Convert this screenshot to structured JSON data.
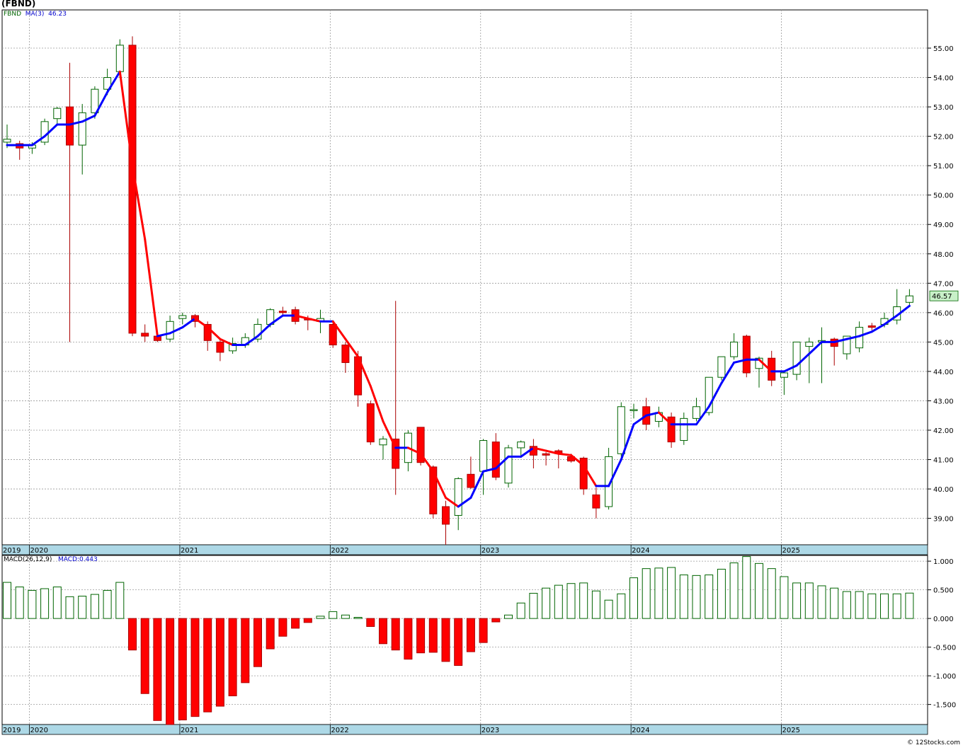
{
  "title": "(FBND)",
  "footer": "© 12Stocks.com",
  "colors": {
    "up": "#006400",
    "down": "#ff0000",
    "ma_up": "#0000ff",
    "ma_down": "#ff0000",
    "grid": "#9a9a9a",
    "axis_band": "#add8e6",
    "last_price_bg": "#c8f0c8"
  },
  "chart_data": [
    {
      "type": "candlestick",
      "ticker": "FBND",
      "legend": {
        "ticker": "FBND",
        "ma_label": "MA(3)",
        "ma_value": "46.23"
      },
      "last_price_label": "46.57",
      "ylim": [
        38.1,
        56.3
      ],
      "yticks": [
        "39.00",
        "40.00",
        "41.00",
        "42.00",
        "43.00",
        "44.00",
        "45.00",
        "46.00",
        "47.00",
        "48.00",
        "49.00",
        "50.00",
        "51.00",
        "52.00",
        "53.00",
        "54.00",
        "55.00"
      ],
      "x_labels": [
        "2019",
        "2020",
        "2021",
        "2022",
        "2023",
        "2024",
        "2025"
      ],
      "year_start_index": {
        "2019": -1,
        "2020": 2,
        "2021": 14,
        "2022": 26,
        "2023": 38,
        "2024": 50,
        "2025": 62
      },
      "ohlc": [
        [
          51.8,
          52.4,
          51.6,
          51.9
        ],
        [
          51.75,
          51.85,
          51.2,
          51.6
        ],
        [
          51.6,
          51.8,
          51.4,
          51.7
        ],
        [
          51.8,
          52.6,
          51.7,
          52.5
        ],
        [
          52.6,
          53.0,
          52.4,
          52.95
        ],
        [
          53.0,
          54.5,
          45.0,
          51.7
        ],
        [
          51.7,
          53.1,
          50.7,
          52.8
        ],
        [
          52.8,
          53.7,
          52.6,
          53.6
        ],
        [
          53.6,
          54.3,
          53.4,
          54.0
        ],
        [
          54.2,
          55.3,
          54.0,
          55.1
        ],
        [
          55.1,
          55.4,
          45.2,
          45.3
        ],
        [
          45.3,
          45.6,
          45.0,
          45.2
        ],
        [
          45.2,
          45.3,
          45.0,
          45.05
        ],
        [
          45.1,
          45.9,
          45.0,
          45.7
        ],
        [
          45.8,
          46.0,
          45.6,
          45.9
        ],
        [
          45.9,
          45.95,
          45.5,
          45.7
        ],
        [
          45.6,
          45.7,
          44.7,
          45.05
        ],
        [
          45.0,
          45.1,
          44.35,
          44.65
        ],
        [
          44.7,
          45.15,
          44.6,
          44.95
        ],
        [
          44.9,
          45.3,
          44.8,
          45.15
        ],
        [
          45.1,
          45.8,
          45.0,
          45.6
        ],
        [
          45.6,
          46.15,
          45.5,
          46.1
        ],
        [
          46.05,
          46.2,
          45.9,
          46.0
        ],
        [
          46.1,
          46.2,
          45.6,
          45.7
        ],
        [
          45.8,
          45.9,
          45.4,
          45.75
        ],
        [
          45.7,
          46.1,
          45.3,
          45.8
        ],
        [
          45.6,
          45.7,
          44.8,
          44.9
        ],
        [
          44.9,
          45.0,
          43.95,
          44.3
        ],
        [
          44.5,
          44.7,
          42.8,
          43.2
        ],
        [
          42.9,
          43.0,
          41.5,
          41.6
        ],
        [
          41.5,
          41.8,
          41.0,
          41.7
        ],
        [
          41.7,
          46.4,
          39.8,
          40.7
        ],
        [
          40.9,
          42.0,
          40.6,
          41.9
        ],
        [
          42.1,
          42.1,
          40.8,
          40.9
        ],
        [
          40.75,
          40.8,
          39.0,
          39.15
        ],
        [
          39.4,
          39.6,
          38.1,
          38.8
        ],
        [
          39.1,
          40.4,
          38.6,
          40.35
        ],
        [
          40.5,
          41.1,
          40.0,
          40.05
        ],
        [
          40.6,
          41.7,
          39.8,
          41.65
        ],
        [
          41.6,
          41.9,
          40.3,
          40.4
        ],
        [
          40.2,
          41.5,
          40.05,
          41.4
        ],
        [
          41.4,
          41.65,
          41.1,
          41.6
        ],
        [
          41.45,
          41.7,
          40.7,
          41.15
        ],
        [
          41.2,
          41.25,
          40.8,
          41.15
        ],
        [
          41.3,
          41.35,
          40.7,
          41.2
        ],
        [
          41.1,
          41.2,
          40.9,
          40.95
        ],
        [
          41.05,
          41.1,
          39.8,
          40.0
        ],
        [
          39.8,
          40.05,
          39.0,
          39.35
        ],
        [
          39.4,
          41.4,
          39.3,
          41.1
        ],
        [
          41.2,
          42.95,
          41.1,
          42.8
        ],
        [
          42.7,
          42.9,
          42.4,
          42.7
        ],
        [
          42.8,
          43.1,
          42.0,
          42.2
        ],
        [
          42.3,
          42.8,
          42.1,
          42.6
        ],
        [
          42.45,
          42.6,
          41.4,
          41.6
        ],
        [
          41.65,
          42.6,
          41.5,
          42.4
        ],
        [
          42.4,
          43.1,
          42.3,
          42.8
        ],
        [
          42.6,
          43.8,
          42.5,
          43.8
        ],
        [
          43.8,
          44.4,
          43.7,
          44.5
        ],
        [
          44.5,
          45.3,
          44.4,
          45.0
        ],
        [
          45.2,
          45.25,
          43.8,
          43.95
        ],
        [
          44.1,
          44.5,
          43.45,
          44.45
        ],
        [
          44.45,
          44.7,
          43.5,
          43.7
        ],
        [
          43.8,
          44.0,
          43.2,
          43.95
        ],
        [
          43.9,
          45.0,
          43.7,
          45.0
        ],
        [
          44.85,
          45.15,
          43.6,
          45.0
        ],
        [
          45.0,
          45.5,
          43.6,
          45.05
        ],
        [
          45.1,
          45.15,
          44.2,
          44.85
        ],
        [
          44.6,
          45.2,
          44.4,
          45.2
        ],
        [
          44.8,
          45.7,
          44.65,
          45.5
        ],
        [
          45.55,
          45.65,
          45.4,
          45.5
        ],
        [
          45.6,
          46.0,
          45.5,
          45.8
        ],
        [
          45.75,
          46.8,
          45.6,
          46.2
        ],
        [
          46.35,
          46.8,
          46.2,
          46.57
        ]
      ],
      "ma": [
        51.7,
        51.7,
        51.7,
        52.0,
        52.4,
        52.4,
        52.5,
        52.7,
        53.5,
        54.2,
        51.0,
        48.5,
        45.2,
        45.3,
        45.5,
        45.8,
        45.5,
        45.1,
        44.9,
        44.9,
        45.2,
        45.6,
        45.9,
        45.9,
        45.8,
        45.7,
        45.7,
        45.1,
        44.5,
        43.5,
        42.3,
        41.4,
        41.4,
        41.2,
        40.6,
        39.7,
        39.4,
        39.7,
        40.6,
        40.7,
        41.1,
        41.1,
        41.4,
        41.3,
        41.2,
        41.15,
        40.8,
        40.1,
        40.1,
        41.0,
        42.2,
        42.5,
        42.6,
        42.2,
        42.2,
        42.2,
        42.8,
        43.6,
        44.3,
        44.4,
        44.4,
        44.0,
        44.0,
        44.2,
        44.6,
        45.0,
        45.0,
        45.1,
        45.2,
        45.35,
        45.6,
        45.9,
        46.23
      ]
    },
    {
      "type": "bar",
      "name": "MACD(26,12,9)",
      "legend": {
        "label": "MACD(26,12,9)",
        "value_label": "MACD:0.443"
      },
      "ylim": [
        -1.85,
        1.1
      ],
      "yticks": [
        "1.000",
        "0.500",
        "0.000",
        "-0.500",
        "-1.000",
        "-1.500"
      ],
      "x_labels": [
        "2019",
        "2020",
        "2021",
        "2022",
        "2023",
        "2024",
        "2025"
      ],
      "values": [
        0.63,
        0.55,
        0.49,
        0.52,
        0.55,
        0.38,
        0.39,
        0.42,
        0.49,
        0.63,
        -0.55,
        -1.31,
        -1.78,
        -1.85,
        -1.77,
        -1.71,
        -1.63,
        -1.53,
        -1.35,
        -1.12,
        -0.84,
        -0.53,
        -0.31,
        -0.17,
        -0.07,
        0.04,
        0.12,
        0.06,
        0.02,
        -0.14,
        -0.44,
        -0.55,
        -0.71,
        -0.6,
        -0.59,
        -0.75,
        -0.82,
        -0.58,
        -0.42,
        -0.06,
        0.06,
        0.27,
        0.44,
        0.53,
        0.58,
        0.61,
        0.62,
        0.48,
        0.32,
        0.43,
        0.71,
        0.87,
        0.88,
        0.89,
        0.76,
        0.75,
        0.76,
        0.86,
        0.97,
        1.08,
        0.96,
        0.87,
        0.73,
        0.62,
        0.62,
        0.57,
        0.53,
        0.47,
        0.47,
        0.43,
        0.43,
        0.43,
        0.443
      ]
    }
  ]
}
